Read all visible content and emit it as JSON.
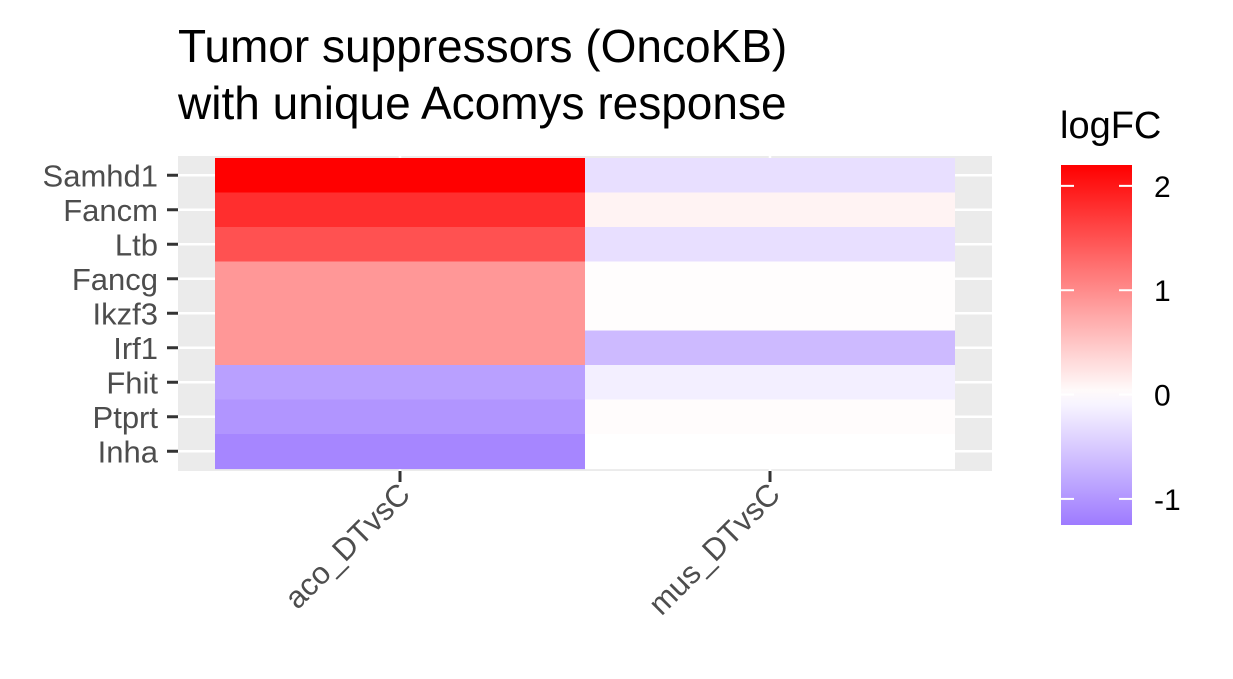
{
  "chart_data": {
    "type": "heatmap",
    "title": [
      "Tumor suppressors (OncoKB)",
      "with unique Acomys response"
    ],
    "xlabel": "",
    "ylabel": "",
    "columns": [
      "aco_DTvsC",
      "mus_DTvsC"
    ],
    "rows": [
      "Samhd1",
      "Fancm",
      "Ltb",
      "Fancg",
      "Ikzf3",
      "Irf1",
      "Fhit",
      "Ptprt",
      "Inha"
    ],
    "values": [
      [
        2.2,
        -0.3
      ],
      [
        1.8,
        0.1
      ],
      [
        1.5,
        -0.3
      ],
      [
        0.9,
        0.02
      ],
      [
        0.9,
        0.02
      ],
      [
        0.9,
        -0.65
      ],
      [
        -0.9,
        -0.15
      ],
      [
        -1.0,
        0.03
      ],
      [
        -1.15,
        0.0
      ]
    ],
    "legend": {
      "title": "logFC",
      "ticks": [
        2,
        1,
        0,
        -1
      ],
      "tick_labels": [
        "2",
        "1",
        "0",
        "-1"
      ],
      "range": [
        -1.25,
        2.2
      ],
      "position": "right"
    },
    "colors": {
      "high": "#ff0000",
      "mid": "#ffffff",
      "low": "#9e7bff",
      "panel": "#ebebeb",
      "grid": "#ffffff"
    }
  }
}
